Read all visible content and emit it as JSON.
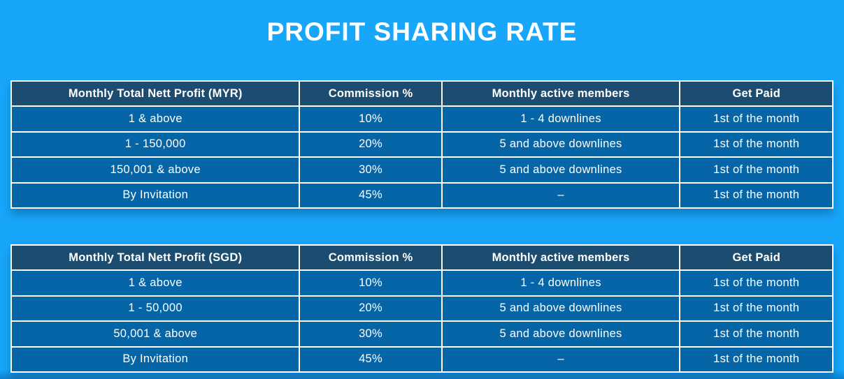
{
  "page": {
    "title": "PROFIT SHARING RATE"
  },
  "colors": {
    "background": "#18a6fa",
    "background_deep": "#0f80d2",
    "header_row": "#1c4d70",
    "body_row": "#0565a7",
    "border": "#ffffff",
    "text": "#ffffff"
  },
  "tables": [
    {
      "id": "profit-sharing-myr",
      "currency": "MYR",
      "headers": [
        "Monthly Total Nett Profit (MYR)",
        "Commission %",
        "Monthly active members",
        "Get Paid"
      ],
      "rows": [
        [
          "1 & above",
          "10%",
          "1 - 4 downlines",
          "1st of the month"
        ],
        [
          "1 - 150,000",
          "20%",
          "5 and above downlines",
          "1st of the month"
        ],
        [
          "150,001 & above",
          "30%",
          "5 and above downlines",
          "1st of the month"
        ],
        [
          "By Invitation",
          "45%",
          "–",
          "1st of the month"
        ]
      ]
    },
    {
      "id": "profit-sharing-sgd",
      "currency": "SGD",
      "headers": [
        "Monthly Total Nett Profit (SGD)",
        "Commission %",
        "Monthly active members",
        "Get Paid"
      ],
      "rows": [
        [
          "1 & above",
          "10%",
          "1 - 4 downlines",
          "1st of the month"
        ],
        [
          "1 - 50,000",
          "20%",
          "5 and above downlines",
          "1st of the month"
        ],
        [
          "50,001 & above",
          "30%",
          "5 and above downlines",
          "1st of the month"
        ],
        [
          "By Invitation",
          "45%",
          "–",
          "1st of the month"
        ]
      ]
    }
  ]
}
